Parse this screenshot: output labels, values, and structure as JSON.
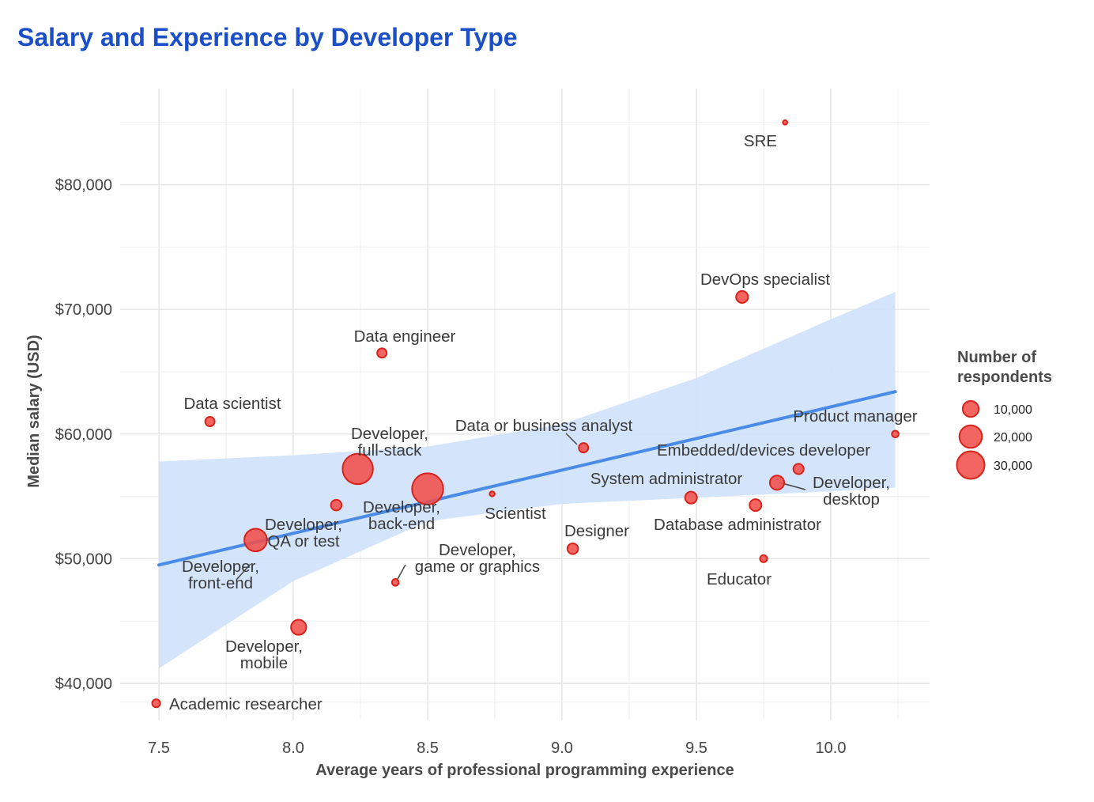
{
  "chart_data": {
    "type": "scatter",
    "title": "Salary and Experience by Developer Type",
    "xlabel": "Average years of professional programming experience",
    "ylabel": "Median salary (USD)",
    "xlim": [
      7.35,
      10.38
    ],
    "ylim": [
      37000,
      88000
    ],
    "x_ticks": [
      7.5,
      8.0,
      8.5,
      9.0,
      9.5,
      10.0
    ],
    "x_tick_labels": [
      "7.5",
      "8.0",
      "8.5",
      "9.0",
      "9.5",
      "10.0"
    ],
    "y_ticks": [
      40000,
      50000,
      60000,
      70000,
      80000
    ],
    "y_tick_labels": [
      "$40,000",
      "$50,000",
      "$60,000",
      "$70,000",
      "$80,000"
    ],
    "grid": true,
    "point_color": "#f0504a",
    "trend_color": "#4a8be6",
    "band_color": "#cfe2fb",
    "trend": {
      "x": [
        7.5,
        10.24
      ],
      "y": [
        49500,
        63400
      ]
    },
    "band": {
      "x": [
        7.5,
        8.0,
        8.5,
        9.0,
        9.5,
        10.0,
        10.24
      ],
      "upper": [
        57800,
        58300,
        59000,
        60800,
        64500,
        69200,
        71400
      ],
      "lower": [
        41200,
        48200,
        53000,
        54400,
        54900,
        55400,
        55700
      ]
    },
    "points": [
      {
        "name": "Academic researcher",
        "x": 7.49,
        "y": 38400,
        "n": 2500
      },
      {
        "name": "Data scientist",
        "x": 7.69,
        "y": 61000,
        "n": 3500
      },
      {
        "name": "Developer, front-end",
        "x": 7.86,
        "y": 51500,
        "n": 20000
      },
      {
        "name": "Developer, mobile",
        "x": 8.02,
        "y": 44500,
        "n": 9000
      },
      {
        "name": "Developer, QA or test",
        "x": 8.16,
        "y": 54300,
        "n": 4500
      },
      {
        "name": "Developer, full-stack",
        "x": 8.24,
        "y": 57200,
        "n": 36000
      },
      {
        "name": "Data engineer",
        "x": 8.33,
        "y": 66500,
        "n": 3500
      },
      {
        "name": "Developer, game or graphics",
        "x": 8.38,
        "y": 48100,
        "n": 1800
      },
      {
        "name": "Developer, back-end",
        "x": 8.5,
        "y": 55600,
        "n": 38000
      },
      {
        "name": "Scientist",
        "x": 8.74,
        "y": 55200,
        "n": 1000
      },
      {
        "name": "Designer",
        "x": 9.04,
        "y": 50800,
        "n": 4500
      },
      {
        "name": "Data or business analyst",
        "x": 9.08,
        "y": 58900,
        "n": 3500
      },
      {
        "name": "System administrator",
        "x": 9.48,
        "y": 54900,
        "n": 5500
      },
      {
        "name": "DevOps specialist",
        "x": 9.67,
        "y": 71000,
        "n": 5500
      },
      {
        "name": "Database administrator",
        "x": 9.72,
        "y": 54300,
        "n": 5500
      },
      {
        "name": "Educator",
        "x": 9.75,
        "y": 50000,
        "n": 2000
      },
      {
        "name": "Developer, desktop",
        "x": 9.8,
        "y": 56100,
        "n": 8000
      },
      {
        "name": "SRE",
        "x": 9.83,
        "y": 85000,
        "n": 800
      },
      {
        "name": "Embedded/devices developer",
        "x": 9.88,
        "y": 57200,
        "n": 4200
      },
      {
        "name": "Product manager",
        "x": 10.24,
        "y": 60000,
        "n": 1800
      }
    ],
    "labels": [
      {
        "text": [
          "Academic researcher"
        ]
      },
      {
        "text": [
          "Data scientist"
        ]
      },
      {
        "text": [
          "Developer,",
          "front-end"
        ]
      },
      {
        "text": [
          "Developer,",
          "mobile"
        ]
      },
      {
        "text": [
          "Developer,",
          "QA or test"
        ]
      },
      {
        "text": [
          "Developer,",
          "full-stack"
        ]
      },
      {
        "text": [
          "Data engineer"
        ]
      },
      {
        "text": [
          "Developer,",
          "game or graphics"
        ]
      },
      {
        "text": [
          "Developer,",
          "back-end"
        ]
      },
      {
        "text": [
          "Scientist"
        ]
      },
      {
        "text": [
          "Designer"
        ]
      },
      {
        "text": [
          "Data or business analyst"
        ]
      },
      {
        "text": [
          "System administrator"
        ]
      },
      {
        "text": [
          "DevOps specialist"
        ]
      },
      {
        "text": [
          "Database administrator"
        ]
      },
      {
        "text": [
          "Educator"
        ]
      },
      {
        "text": [
          "Developer,",
          "desktop"
        ]
      },
      {
        "text": [
          "SRE"
        ]
      },
      {
        "text": [
          "Embedded/devices developer"
        ]
      },
      {
        "text": [
          "Product manager"
        ]
      }
    ],
    "legend": {
      "title": [
        "Number of",
        "respondents"
      ],
      "position": "right",
      "entries": [
        {
          "label": "10,000",
          "n": 10000
        },
        {
          "label": "20,000",
          "n": 20000
        },
        {
          "label": "30,000",
          "n": 30000
        }
      ]
    }
  }
}
